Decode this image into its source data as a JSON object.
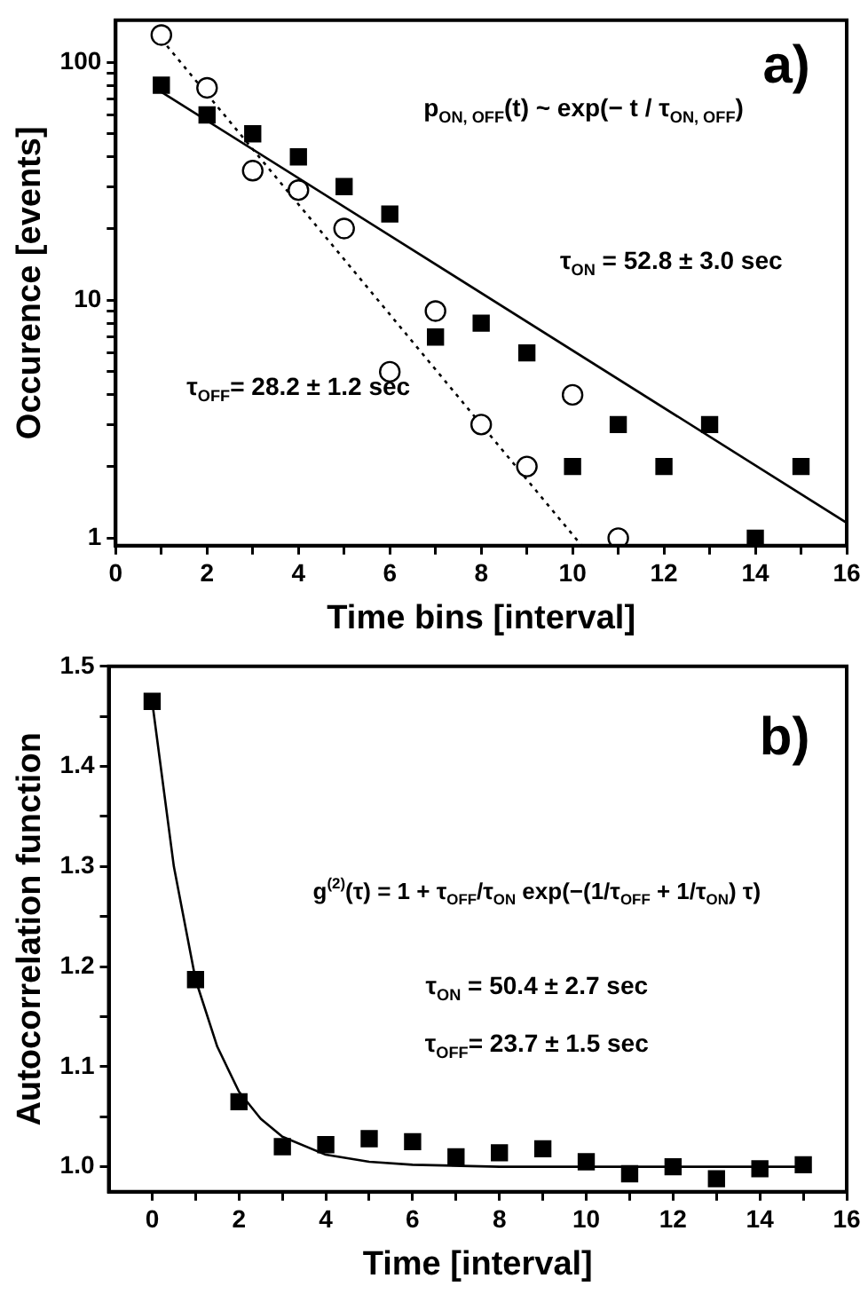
{
  "chart_data": [
    {
      "type": "scatter",
      "xlabel": "Time bins [interval]",
      "ylabel": "Occurence [events]",
      "log": "y",
      "xlim": [
        0,
        16
      ],
      "ylim": [
        0.93,
        150
      ],
      "xticks": [
        0,
        {
          "value": 1,
          "label": null
        },
        2,
        {
          "value": 3,
          "label": null
        },
        4,
        {
          "value": 5,
          "label": null
        },
        6,
        {
          "value": 7,
          "label": null
        },
        8,
        {
          "value": 9,
          "label": null
        },
        10,
        {
          "value": 11,
          "label": null
        },
        12,
        {
          "value": 13,
          "label": null
        },
        14,
        {
          "value": 15,
          "label": null
        },
        16
      ],
      "yticks": [
        1,
        {
          "value": 2,
          "label": null
        },
        {
          "value": 3,
          "label": null
        },
        {
          "value": 4,
          "label": null
        },
        {
          "value": 5,
          "label": null
        },
        {
          "value": 6,
          "label": null
        },
        {
          "value": 7,
          "label": null
        },
        {
          "value": 8,
          "label": null
        },
        {
          "value": 9,
          "label": null
        },
        10,
        {
          "value": 20,
          "label": null
        },
        {
          "value": 30,
          "label": null
        },
        {
          "value": 40,
          "label": null
        },
        {
          "value": 50,
          "label": null
        },
        {
          "value": 60,
          "label": null
        },
        {
          "value": 70,
          "label": null
        },
        {
          "value": 80,
          "label": null
        },
        {
          "value": 90,
          "label": null
        },
        100
      ],
      "grid": false,
      "legend": false,
      "series": [
        {
          "type": "scatter",
          "marker": "square",
          "color": "#000000",
          "x": [
            1,
            2,
            3,
            4,
            5,
            6,
            7,
            8,
            9,
            10,
            11,
            12,
            13,
            14,
            15
          ],
          "values": [
            80,
            60,
            50,
            40,
            30,
            23,
            7,
            8,
            6,
            2,
            3,
            2,
            3,
            1,
            2
          ]
        },
        {
          "type": "scatter",
          "marker": "circle",
          "color": "#000000",
          "x": [
            1,
            2,
            3,
            4,
            5,
            6,
            7,
            8,
            9,
            10,
            11
          ],
          "values": [
            130,
            78,
            35,
            29,
            20,
            5,
            9,
            3,
            2,
            4,
            1
          ]
        },
        {
          "type": "line",
          "line_style": "solid",
          "color": "#000000",
          "x": [
            1,
            16
          ],
          "values": [
            75,
            1.16
          ]
        },
        {
          "type": "line",
          "line_style": "dotted",
          "color": "#000000",
          "x": [
            1,
            10.2
          ],
          "values": [
            125,
            0.93
          ]
        }
      ],
      "annotations": [
        "a)",
        "p$_{ON, OFF}$(t) ~ exp(− t / τ$_{ON, OFF}$)",
        "τ$_{ON}$ = 52.8 ± 3.0 sec",
        "τ$_{OFF}$= 28.2 ± 1.2 sec"
      ]
    },
    {
      "type": "scatter",
      "xlabel": "Time [interval]",
      "ylabel": "Autocorrelation function",
      "xlim": [
        -1,
        16
      ],
      "ylim": [
        0.975,
        1.5
      ],
      "xticks": [
        0,
        {
          "value": 1,
          "label": null
        },
        2,
        {
          "value": 3,
          "label": null
        },
        4,
        {
          "value": 5,
          "label": null
        },
        6,
        {
          "value": 7,
          "label": null
        },
        8,
        {
          "value": 9,
          "label": null
        },
        10,
        {
          "value": 11,
          "label": null
        },
        12,
        {
          "value": 13,
          "label": null
        },
        14,
        {
          "value": 15,
          "label": null
        },
        16
      ],
      "yticks": [
        {
          "value": 1,
          "label": "1.0"
        },
        {
          "value": 1.05,
          "label": null
        },
        1.1,
        {
          "value": 1.15,
          "label": null
        },
        1.2,
        {
          "value": 1.25,
          "label": null
        },
        1.3,
        {
          "value": 1.35,
          "label": null
        },
        1.4,
        {
          "value": 1.45,
          "label": null
        },
        1.5
      ],
      "grid": false,
      "legend": false,
      "series": [
        {
          "type": "scatter",
          "marker": "square",
          "color": "#000000",
          "x": [
            0,
            1,
            2,
            3,
            4,
            5,
            6,
            7,
            8,
            9,
            10,
            11,
            12,
            13,
            14,
            15
          ],
          "values": [
            1.465,
            1.187,
            1.065,
            1.02,
            1.022,
            1.028,
            1.025,
            1.01,
            1.014,
            1.018,
            1.005,
            0.993,
            1.0,
            0.988,
            0.998,
            1.002
          ]
        },
        {
          "type": "line",
          "line_style": "solid",
          "color": "#000000",
          "x": [
            0,
            0.5,
            1,
            1.5,
            2,
            2.5,
            3,
            4,
            5,
            6,
            8,
            10,
            15
          ],
          "values": [
            1.465,
            1.3,
            1.187,
            1.12,
            1.075,
            1.048,
            1.03,
            1.012,
            1.005,
            1.002,
            1.0,
            1.0,
            1.0
          ]
        }
      ],
      "annotations": [
        "b)",
        "g$^{(2)}$(τ) = 1 + τ$_{OFF}$/τ$_{ON}$ exp(−(1/τ$_{OFF}$ + 1/τ$_{ON}$) τ)",
        "τ$_{ON}$ = 50.4 ± 2.7 sec",
        "τ$_{OFF}$= 23.7 ± 1.5 sec"
      ]
    }
  ]
}
